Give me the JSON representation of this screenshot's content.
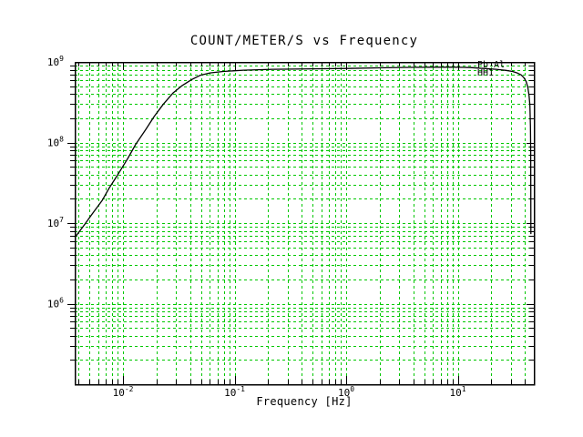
{
  "chart_data": {
    "type": "line",
    "title": "COUNT/METER/S vs Frequency",
    "xlabel": "Frequency [Hz]",
    "ylabel": "",
    "xscale": "log",
    "yscale": "log",
    "xlim": [
      0.00369,
      48
    ],
    "ylim": [
      100000,
      1000000000
    ],
    "x_major_ticks_exp": [
      -2,
      -1,
      0,
      1
    ],
    "y_major_ticks_exp": [
      6,
      7,
      8,
      9
    ],
    "grid": {
      "show": true,
      "minor_lines": true,
      "color": "#00c800",
      "line_style": "dashed"
    },
    "frame_color": "#000000",
    "curve_color": "#000000",
    "series": [
      {
        "name": "Pb Al HH1",
        "points": [
          [
            0.0037,
            6600000
          ],
          [
            0.0045,
            9500000
          ],
          [
            0.0052,
            12500000
          ],
          [
            0.0065,
            19000000
          ],
          [
            0.0075,
            27000000
          ],
          [
            0.009,
            40000000
          ],
          [
            0.011,
            63000000
          ],
          [
            0.013,
            95000000
          ],
          [
            0.016,
            145000000
          ],
          [
            0.019,
            210000000
          ],
          [
            0.023,
            300000000
          ],
          [
            0.028,
            410000000
          ],
          [
            0.034,
            510000000
          ],
          [
            0.041,
            600000000
          ],
          [
            0.049,
            680000000
          ],
          [
            0.06,
            730000000
          ],
          [
            0.079,
            760000000
          ],
          [
            0.12,
            790000000
          ],
          [
            0.22,
            810000000
          ],
          [
            0.5,
            820000000
          ],
          [
            1.0,
            830000000
          ],
          [
            2.0,
            845000000
          ],
          [
            3.7,
            855000000
          ],
          [
            6.0,
            860000000
          ],
          [
            9.5,
            860000000
          ],
          [
            13,
            850000000
          ],
          [
            17,
            830000000
          ],
          [
            22,
            810000000
          ],
          [
            27,
            785000000
          ],
          [
            31,
            760000000
          ],
          [
            34,
            730000000
          ],
          [
            37,
            690000000
          ],
          [
            39,
            640000000
          ],
          [
            41,
            570000000
          ],
          [
            42.5,
            480000000
          ],
          [
            43.5,
            380000000
          ],
          [
            44.3,
            290000000
          ],
          [
            44.8,
            160000000
          ],
          [
            45.0,
            75000000
          ],
          [
            45.1,
            25000000
          ],
          [
            45.2,
            7300000
          ]
        ]
      }
    ],
    "annotations": [
      {
        "text": "Pb Al",
        "x": 15,
        "y": 890000000
      },
      {
        "text": "HH1",
        "x": 15,
        "y": 710000000
      }
    ]
  }
}
